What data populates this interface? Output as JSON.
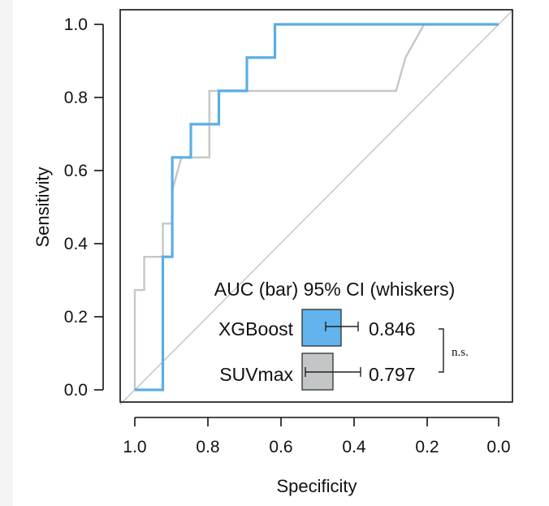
{
  "colors": {
    "xgboost": "#5aaee5",
    "suvmax": "#c6c6c6",
    "xgboost_bar": "#63b4ec",
    "suvmax_bar": "#c3c6c6",
    "diagonal": "#bbbbbb",
    "axis": "#111111"
  },
  "legend": {
    "header": "AUC (bar) 95% CI (whiskers)",
    "significance": "n.s.",
    "items": [
      {
        "label": "XGBoost",
        "value_text": "0.846"
      },
      {
        "label": "SUVmax",
        "value_text": "0.797"
      }
    ]
  },
  "chart_data": {
    "type": "line",
    "title": "",
    "xlabel": "Specificity",
    "ylabel": "Sensitivity",
    "xlim": [
      1.0,
      0.0
    ],
    "ylim": [
      0.0,
      1.0
    ],
    "x_reversed": true,
    "x_ticks": [
      "1.0",
      "0.8",
      "0.6",
      "0.4",
      "0.2",
      "0.0"
    ],
    "y_ticks": [
      "0.0",
      "0.2",
      "0.4",
      "0.6",
      "0.8",
      "1.0"
    ],
    "grid": false,
    "reference_line": {
      "from": [
        1.0,
        0.0
      ],
      "to": [
        0.0,
        1.0
      ]
    },
    "series": [
      {
        "name": "XGBoost",
        "auc": 0.846,
        "ci": [
          0.8,
          0.94
        ],
        "x": [
          1.0,
          0.923,
          0.923,
          0.897,
          0.897,
          0.846,
          0.846,
          0.769,
          0.769,
          0.692,
          0.692,
          0.615,
          0.615,
          0.0
        ],
        "y": [
          0.0,
          0.0,
          0.364,
          0.364,
          0.636,
          0.636,
          0.727,
          0.727,
          0.818,
          0.818,
          0.909,
          0.909,
          1.0,
          1.0
        ]
      },
      {
        "name": "SUVmax",
        "auc": 0.797,
        "ci": [
          0.52,
          0.97
        ],
        "x": [
          1.0,
          1.0,
          0.974,
          0.974,
          0.923,
          0.923,
          0.897,
          0.897,
          0.872,
          0.795,
          0.795,
          0.282,
          0.256,
          0.205,
          0.0
        ],
        "y": [
          0.0,
          0.273,
          0.273,
          0.364,
          0.364,
          0.455,
          0.455,
          0.545,
          0.636,
          0.636,
          0.818,
          0.818,
          0.909,
          1.0,
          1.0
        ]
      }
    ]
  }
}
